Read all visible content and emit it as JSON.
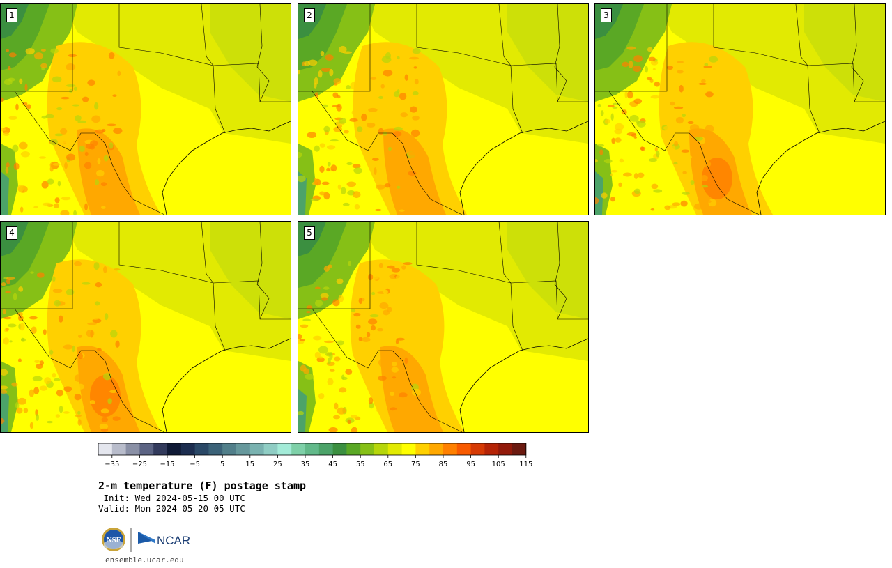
{
  "panels": [
    {
      "label": "1"
    },
    {
      "label": "2"
    },
    {
      "label": "3"
    },
    {
      "label": "4"
    },
    {
      "label": "5"
    }
  ],
  "colorbar": {
    "tick_labels": [
      "−35",
      "−25",
      "−15",
      "−5",
      "5",
      "15",
      "25",
      "35",
      "45",
      "55",
      "65",
      "75",
      "85",
      "95",
      "105",
      "115"
    ],
    "colors": [
      "#e4e6ee",
      "#b8bccb",
      "#8a90a6",
      "#5b6383",
      "#323a5c",
      "#101a36",
      "#1c2d4f",
      "#2a4866",
      "#3b6278",
      "#517f8a",
      "#66989c",
      "#79b2b0",
      "#8fcdc4",
      "#a3ebd8",
      "#7ed0a8",
      "#62b98a",
      "#4ca369",
      "#3b8f40",
      "#5aa825",
      "#86c016",
      "#b6d60b",
      "#e2ea02",
      "#ffff00",
      "#ffd000",
      "#ffa800",
      "#ff8000",
      "#f85a00",
      "#d63a04",
      "#b52406",
      "#921a0a",
      "#6b1a10"
    ],
    "start_value": -40,
    "step": 5
  },
  "title": "2-m temperature (F) postage stamp",
  "init_line": " Init: Wed 2024-05-15 00 UTC",
  "valid_line": "Valid: Mon 2024-05-20 05 UTC",
  "logos": {
    "nsf": "NSF",
    "ncar": "NCAR"
  },
  "url": "ensemble.ucar.edu"
}
